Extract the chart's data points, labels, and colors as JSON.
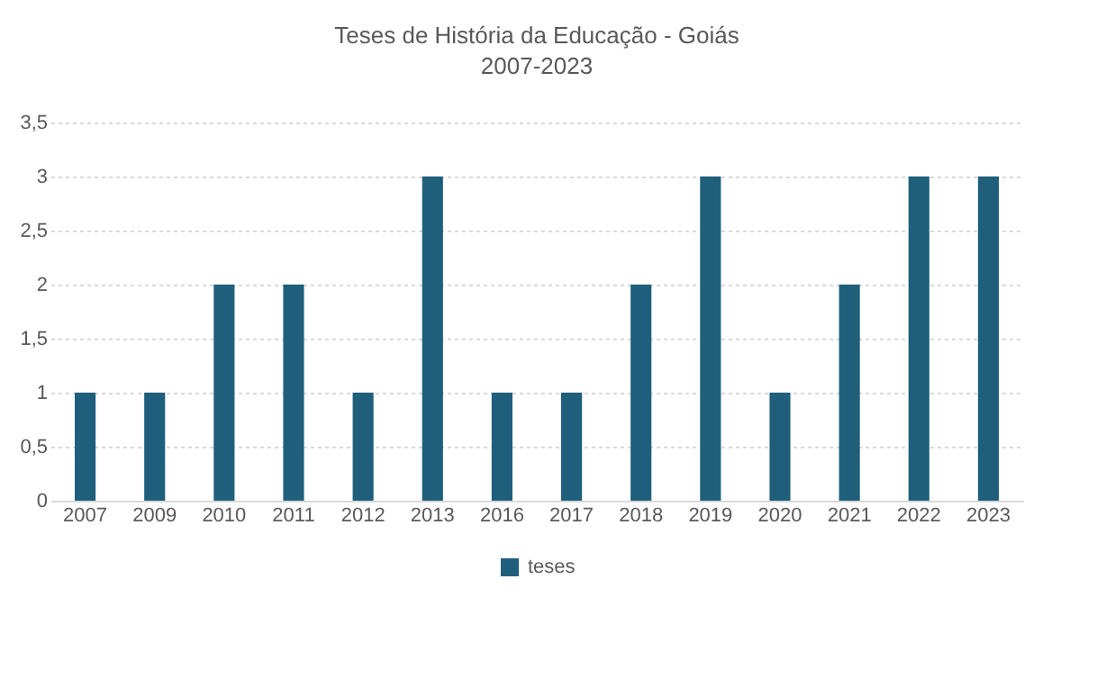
{
  "chart_data": {
    "type": "bar",
    "title": "Teses de História da Educação - Goiás",
    "subtitle": "2007-2023",
    "categories": [
      "2007",
      "2009",
      "2010",
      "2011",
      "2012",
      "2013",
      "2016",
      "2017",
      "2018",
      "2019",
      "2020",
      "2021",
      "2022",
      "2023"
    ],
    "series": [
      {
        "name": "teses",
        "color": "#1f5f7b",
        "values": [
          1,
          1,
          2,
          2,
          1,
          3,
          1,
          1,
          2,
          3,
          1,
          2,
          3,
          3
        ]
      }
    ],
    "ylim": [
      0,
      3.5
    ],
    "yticks": [
      0,
      {
        "value": 0.5,
        "label": "0,5"
      },
      1,
      {
        "value": 1.5,
        "label": "1,5"
      },
      2,
      {
        "value": 2.5,
        "label": "2,5"
      },
      3,
      {
        "value": 3.5,
        "label": "3,5"
      }
    ],
    "grid": "y",
    "legend": "bottom"
  }
}
